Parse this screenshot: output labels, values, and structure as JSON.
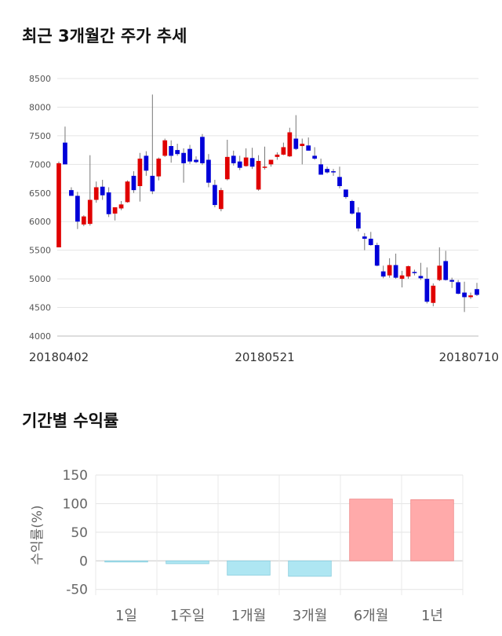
{
  "sections": {
    "price_title": "최근 3개월간 주가 추세",
    "return_title": "기간별 수익률"
  },
  "colors": {
    "up": "#e00000",
    "down": "#0000d8",
    "positive_bar": "#ffaaaa",
    "negative_bar": "#aee6f2"
  },
  "chart_data": [
    {
      "type": "candlestick",
      "title": "",
      "ylim": [
        4000,
        8500
      ],
      "yticks": [
        4000,
        4500,
        5000,
        5500,
        6000,
        6500,
        7000,
        7500,
        8000,
        8500
      ],
      "x_tick_labels": [
        {
          "index": 0,
          "label": "20180402"
        },
        {
          "index": 33,
          "label": "20180521"
        },
        {
          "index": 66,
          "label": "20180710"
        }
      ],
      "grid": true,
      "candles": [
        [
          5550,
          7050,
          5550,
          7020
        ],
        [
          7380,
          7660,
          7020,
          7000
        ],
        [
          6550,
          6600,
          6480,
          6450
        ],
        [
          6450,
          6520,
          5870,
          6000
        ],
        [
          5950,
          6110,
          5920,
          6090
        ],
        [
          5960,
          7160,
          5930,
          6380
        ],
        [
          6380,
          6700,
          6330,
          6600
        ],
        [
          6610,
          6730,
          6380,
          6460
        ],
        [
          6510,
          6600,
          6080,
          6130
        ],
        [
          6140,
          6230,
          6020,
          6250
        ],
        [
          6230,
          6360,
          6200,
          6300
        ],
        [
          6340,
          6720,
          6330,
          6700
        ],
        [
          6800,
          6880,
          6500,
          6550
        ],
        [
          6620,
          7200,
          6350,
          7100
        ],
        [
          7150,
          7230,
          6800,
          6890
        ],
        [
          6800,
          8220,
          6480,
          6530
        ],
        [
          6790,
          7120,
          6720,
          7100
        ],
        [
          7150,
          7450,
          7130,
          7420
        ],
        [
          7320,
          7420,
          7030,
          7150
        ],
        [
          7250,
          7360,
          7150,
          7180
        ],
        [
          7200,
          7280,
          6680,
          7020
        ],
        [
          7270,
          7340,
          7010,
          7050
        ],
        [
          7080,
          7140,
          7020,
          7040
        ],
        [
          7480,
          7530,
          6990,
          7020
        ],
        [
          7080,
          7180,
          6600,
          6680
        ],
        [
          6640,
          6730,
          6250,
          6290
        ],
        [
          6220,
          6590,
          6180,
          6550
        ],
        [
          6740,
          7430,
          6720,
          7130
        ],
        [
          7150,
          7240,
          6980,
          7020
        ],
        [
          7050,
          7150,
          6900,
          6940
        ],
        [
          6970,
          7280,
          6960,
          7120
        ],
        [
          7110,
          7290,
          6920,
          6960
        ],
        [
          6560,
          7160,
          6540,
          7060
        ],
        [
          6940,
          7310,
          6910,
          6960
        ],
        [
          7000,
          7080,
          6960,
          7080
        ],
        [
          7130,
          7210,
          7080,
          7170
        ],
        [
          7170,
          7380,
          7160,
          7300
        ],
        [
          7140,
          7640,
          7130,
          7560
        ],
        [
          7450,
          7860,
          7250,
          7270
        ],
        [
          7320,
          7450,
          7000,
          7360
        ],
        [
          7330,
          7470,
          7240,
          7240
        ],
        [
          7150,
          7300,
          7080,
          7100
        ],
        [
          7000,
          7100,
          6820,
          6820
        ],
        [
          6920,
          6960,
          6840,
          6860
        ],
        [
          6880,
          6920,
          6800,
          6860
        ],
        [
          6780,
          6960,
          6580,
          6620
        ],
        [
          6560,
          6560,
          6400,
          6430
        ],
        [
          6360,
          6380,
          6120,
          6140
        ],
        [
          6160,
          6250,
          5830,
          5880
        ],
        [
          5740,
          5800,
          5500,
          5700
        ],
        [
          5700,
          5820,
          5580,
          5590
        ],
        [
          5590,
          5630,
          5220,
          5230
        ],
        [
          5130,
          5230,
          5010,
          5040
        ],
        [
          5060,
          5360,
          5020,
          5240
        ],
        [
          5240,
          5440,
          5000,
          5020
        ],
        [
          5000,
          5140,
          4850,
          5060
        ],
        [
          5040,
          5230,
          5000,
          5220
        ],
        [
          5120,
          5160,
          5060,
          5100
        ],
        [
          5050,
          5280,
          4980,
          5010
        ],
        [
          5000,
          5200,
          4570,
          4600
        ],
        [
          4580,
          4920,
          4520,
          4880
        ],
        [
          4980,
          5550,
          4960,
          5230
        ],
        [
          5310,
          5490,
          4970,
          4980
        ],
        [
          4980,
          5020,
          4840,
          4950
        ],
        [
          4940,
          4980,
          4730,
          4740
        ],
        [
          4760,
          4950,
          4420,
          4680
        ],
        [
          4680,
          4760,
          4650,
          4710
        ],
        [
          4820,
          4930,
          4700,
          4720
        ]
      ]
    },
    {
      "type": "bar",
      "title": "",
      "ylabel": "수익률(%)",
      "ylim": [
        -60,
        150
      ],
      "yticks": [
        -50,
        0,
        50,
        100,
        150
      ],
      "grid": true,
      "categories": [
        "1일",
        "1주일",
        "1개월",
        "3개월",
        "6개월",
        "1년"
      ],
      "values": [
        -1,
        -5,
        -25,
        -27,
        108,
        107
      ]
    }
  ]
}
